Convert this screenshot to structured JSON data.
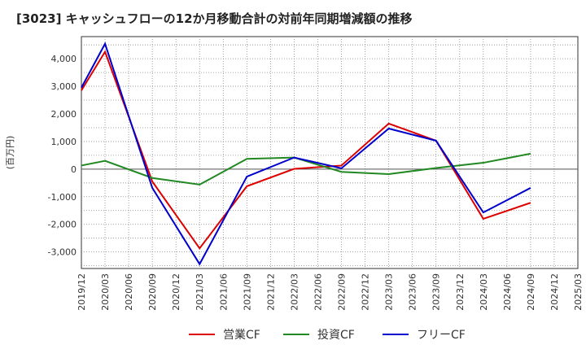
{
  "chart_data": {
    "type": "line",
    "title": "[3023]  キャッシュフローの12か月移動合計の対前年同期増減額の推移",
    "ylabel": "(百万円)",
    "xlabel": "",
    "ylim": [
      -3600,
      4800
    ],
    "yticks": [
      4000,
      3000,
      2000,
      1000,
      0,
      -1000,
      -2000,
      -3000
    ],
    "ytick_labels": [
      "4,000",
      "3,000",
      "2,000",
      "1,000",
      "0",
      "-1,000",
      "-2,000",
      "-3,000"
    ],
    "x_labels": [
      "2019/12",
      "2020/03",
      "2020/06",
      "2020/09",
      "2020/12",
      "2021/03",
      "2021/06",
      "2021/09",
      "2021/12",
      "2022/03",
      "2022/06",
      "2022/09",
      "2022/12",
      "2023/03",
      "2023/06",
      "2023/09",
      "2023/12",
      "2024/03",
      "2024/06",
      "2024/09",
      "2024/12",
      "2025/03"
    ],
    "grid": true,
    "legend_position": "bottom",
    "series": [
      {
        "name": "営業CF",
        "color": "#dd0000",
        "points": [
          {
            "x": "2019/12",
            "y": 2850
          },
          {
            "x": "2020/03",
            "y": 4250
          },
          {
            "x": "2020/09",
            "y": -450
          },
          {
            "x": "2021/03",
            "y": -2870
          },
          {
            "x": "2021/09",
            "y": -620
          },
          {
            "x": "2022/03",
            "y": 10
          },
          {
            "x": "2022/09",
            "y": 130
          },
          {
            "x": "2023/03",
            "y": 1650
          },
          {
            "x": "2023/09",
            "y": 1030
          },
          {
            "x": "2024/03",
            "y": -1800
          },
          {
            "x": "2024/09",
            "y": -1220
          }
        ]
      },
      {
        "name": "投資CF",
        "color": "#228822",
        "points": [
          {
            "x": "2019/12",
            "y": 130
          },
          {
            "x": "2020/03",
            "y": 300
          },
          {
            "x": "2020/09",
            "y": -320
          },
          {
            "x": "2021/03",
            "y": -560
          },
          {
            "x": "2021/09",
            "y": 370
          },
          {
            "x": "2022/03",
            "y": 420
          },
          {
            "x": "2022/09",
            "y": -100
          },
          {
            "x": "2023/03",
            "y": -180
          },
          {
            "x": "2023/09",
            "y": 40
          },
          {
            "x": "2024/03",
            "y": 230
          },
          {
            "x": "2024/09",
            "y": 560
          }
        ]
      },
      {
        "name": "フリーCF",
        "color": "#0000cc",
        "points": [
          {
            "x": "2019/12",
            "y": 2950
          },
          {
            "x": "2020/03",
            "y": 4540
          },
          {
            "x": "2020/09",
            "y": -680
          },
          {
            "x": "2021/03",
            "y": -3440
          },
          {
            "x": "2021/09",
            "y": -270
          },
          {
            "x": "2022/03",
            "y": 420
          },
          {
            "x": "2022/09",
            "y": 30
          },
          {
            "x": "2023/03",
            "y": 1470
          },
          {
            "x": "2023/09",
            "y": 1030
          },
          {
            "x": "2024/03",
            "y": -1570
          },
          {
            "x": "2024/09",
            "y": -680
          }
        ]
      }
    ]
  }
}
